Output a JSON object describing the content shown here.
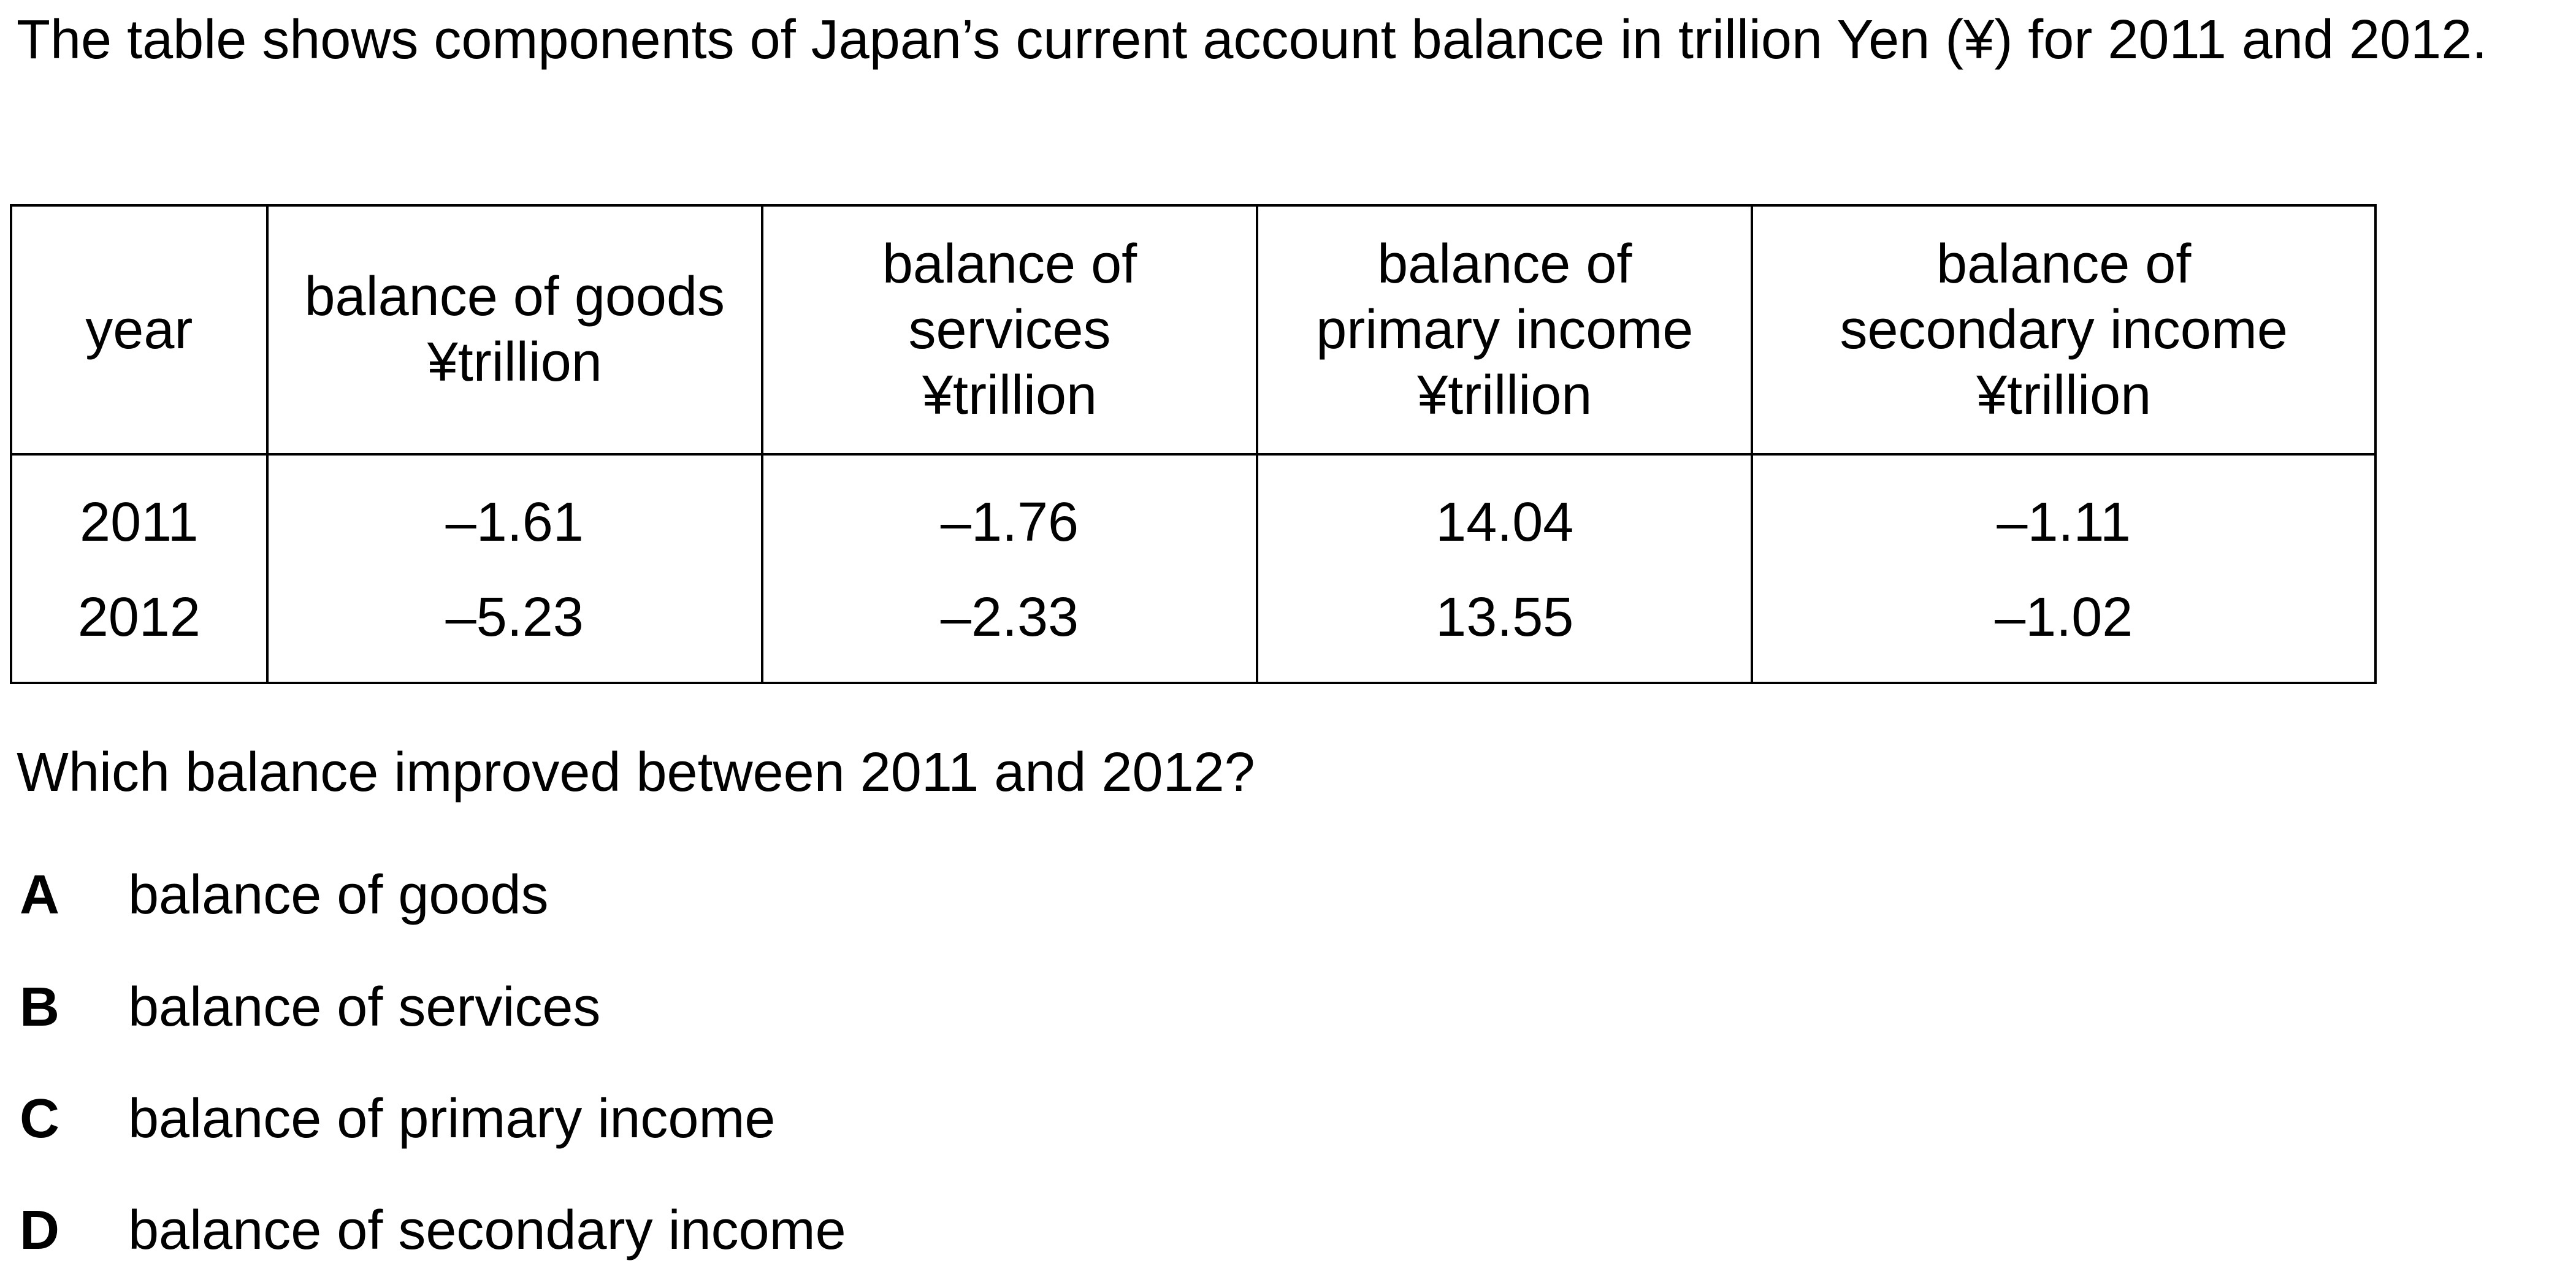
{
  "intro": "The table shows components of Japan’s current account balance in trillion Yen (¥) for 2011 and 2012.",
  "table": {
    "headers": [
      [
        "year"
      ],
      [
        "balance of goods",
        "¥trillion"
      ],
      [
        "balance of",
        "services",
        "¥trillion"
      ],
      [
        "balance of",
        "primary income",
        "¥trillion"
      ],
      [
        "balance of",
        "secondary income",
        "¥trillion"
      ]
    ],
    "rows": [
      [
        "2011",
        "–1.61",
        "–1.76",
        "14.04",
        "–1.11"
      ],
      [
        "2012",
        "–5.23",
        "–2.33",
        "13.55",
        "–1.02"
      ]
    ]
  },
  "question": "Which balance improved between 2011 and 2012?",
  "options": [
    {
      "letter": "A",
      "text": "balance of goods"
    },
    {
      "letter": "B",
      "text": "balance of services"
    },
    {
      "letter": "C",
      "text": "balance of primary income"
    },
    {
      "letter": "D",
      "text": "balance of secondary income"
    }
  ]
}
